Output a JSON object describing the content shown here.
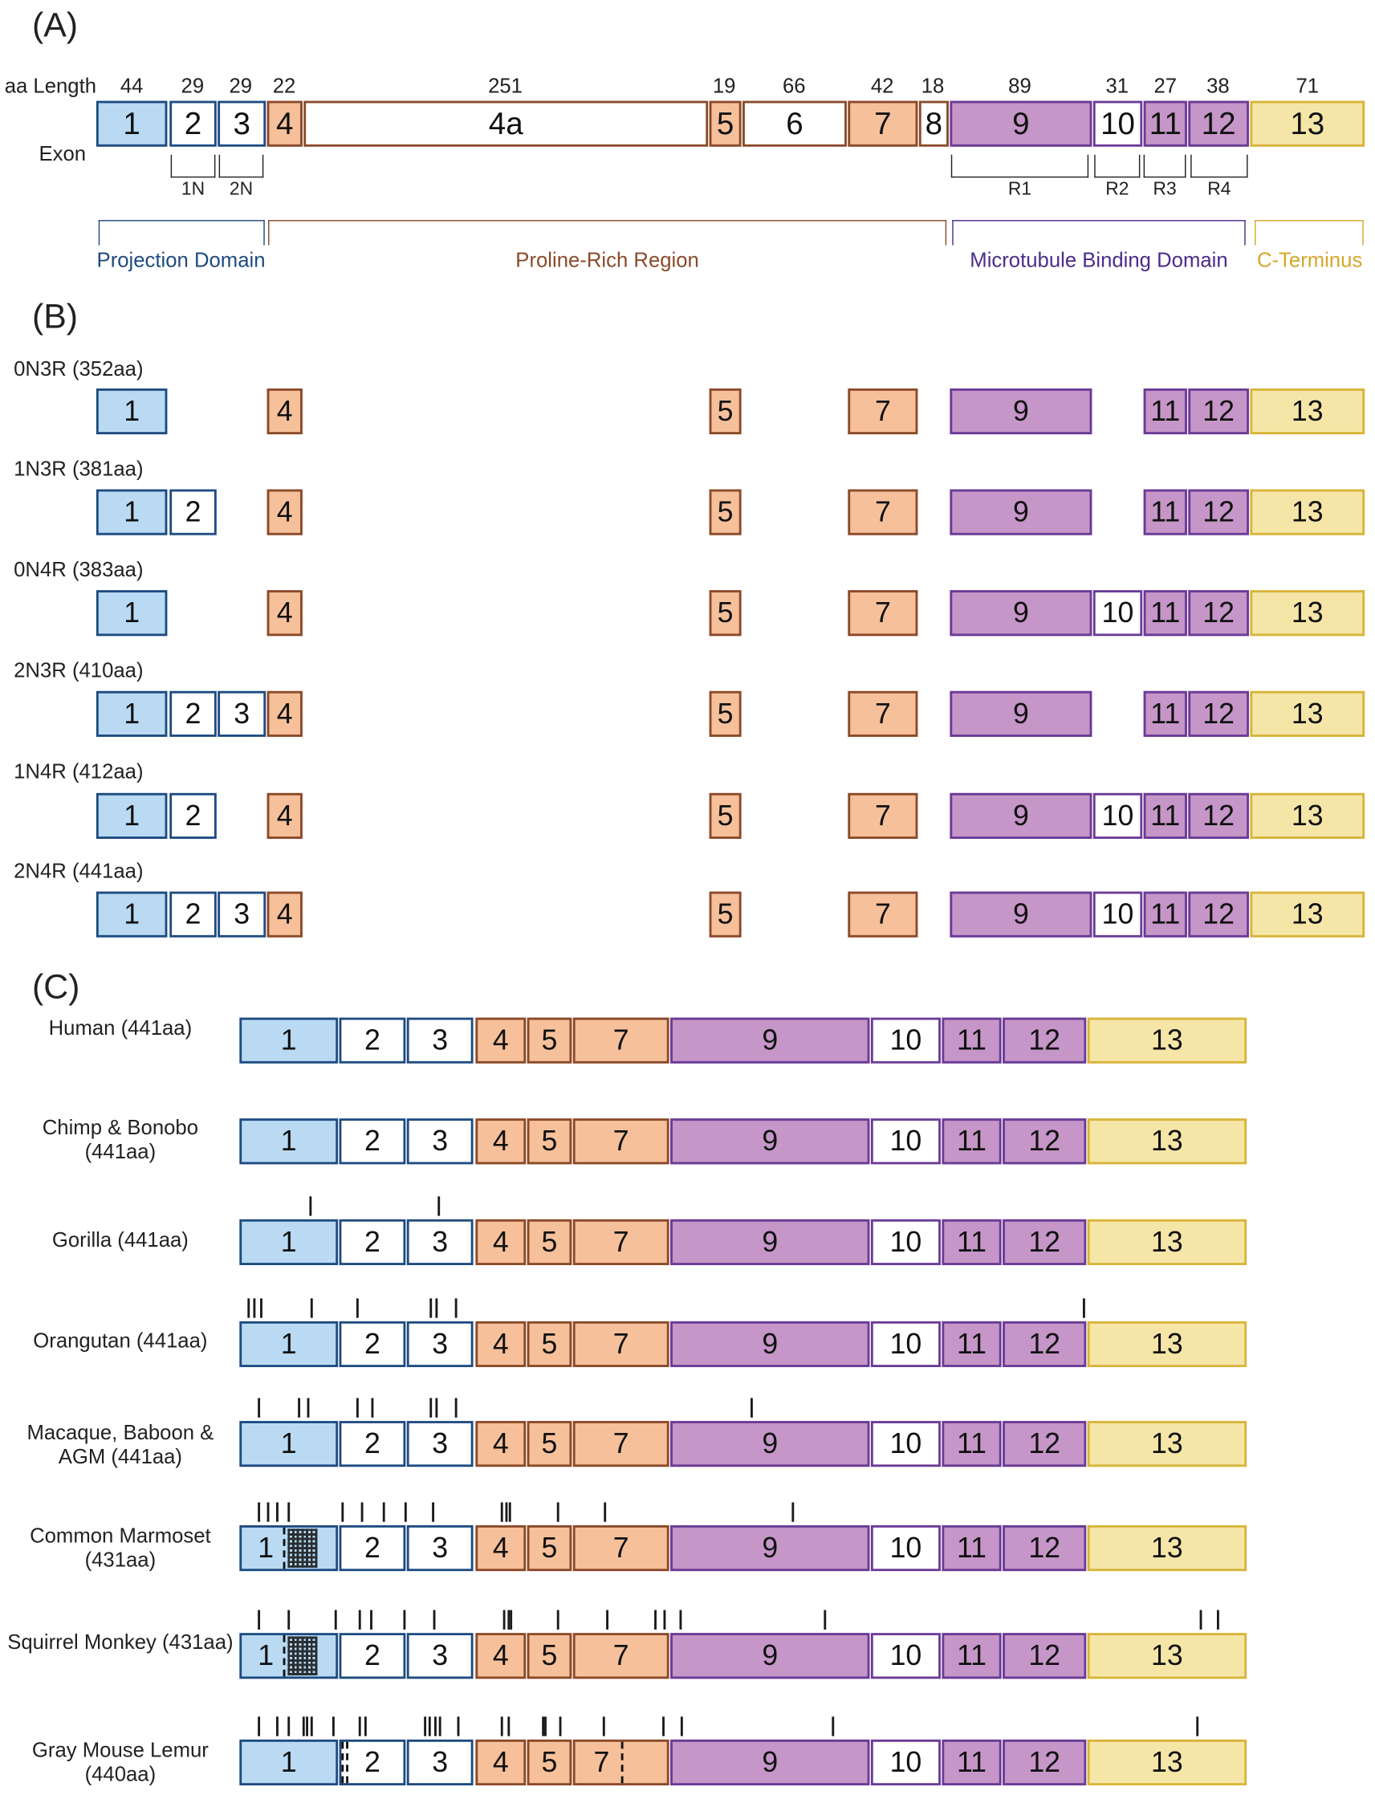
{
  "panels": {
    "a": "(A)",
    "b": "(B)",
    "c": "(C)"
  },
  "panel_a": {
    "aa_length_label": "aa Length",
    "exon_label": "Exon",
    "lengths": [
      "44",
      "29",
      "29",
      "22",
      "251",
      "19",
      "66",
      "42",
      "18",
      "89",
      "31",
      "27",
      "38",
      "71"
    ],
    "exons": [
      "1",
      "2",
      "3",
      "4",
      "4a",
      "5",
      "6",
      "7",
      "8",
      "9",
      "10",
      "11",
      "12",
      "13"
    ],
    "brackets": [
      "1N",
      "2N",
      "R1",
      "R2",
      "R3",
      "R4"
    ],
    "domains": {
      "projection": "Projection Domain",
      "proline": "Proline-Rich Region",
      "mtbd": "Microtubule Binding Domain",
      "cterm": "C-Terminus"
    }
  },
  "panel_b": {
    "isoforms": [
      "0N3R (352aa)",
      "1N3R (381aa)",
      "0N4R (383aa)",
      "2N3R (410aa)",
      "1N4R (412aa)",
      "2N4R (441aa)"
    ],
    "exon_labels": [
      "1",
      "2",
      "3",
      "4",
      "5",
      "7",
      "9",
      "10",
      "11",
      "12",
      "13"
    ]
  },
  "panel_c": {
    "species": [
      "Human (441aa)",
      "Chimp & Bonobo (441aa)",
      "Gorilla (441aa)",
      "Orangutan (441aa)",
      "Macaque, Baboon & AGM (441aa)",
      "Common Marmoset (431aa)",
      "Squirrel Monkey (431aa)",
      "Gray Mouse Lemur (440aa)"
    ],
    "exon_labels": [
      "1",
      "2",
      "3",
      "4",
      "5",
      "7",
      "9",
      "10",
      "11",
      "12",
      "13"
    ]
  },
  "colors": {
    "projection": "#b9daf2",
    "proline": "#f6c09a",
    "mtbd": "#c596c7",
    "cterm": "#f5e6a8",
    "projection_text": "#1e4b80",
    "proline_text": "#8a4a2a",
    "mtbd_text": "#4a2d8a",
    "cterm_text": "#d4a72c"
  }
}
